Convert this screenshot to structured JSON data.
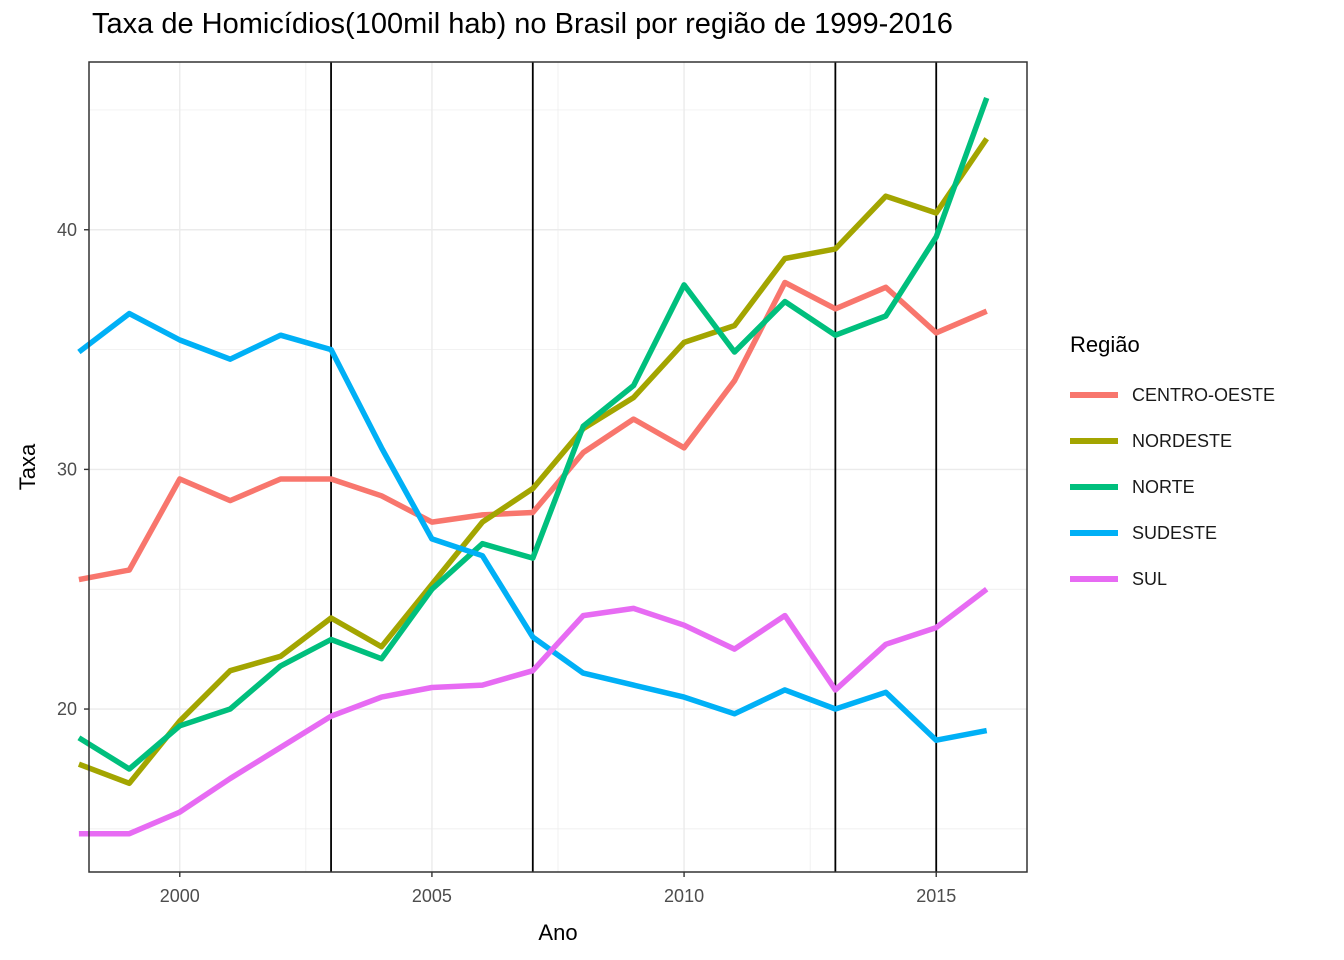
{
  "chart_data": {
    "type": "line",
    "title": "Taxa de Homicídios(100mil hab) no Brasil por região de 1999-2016",
    "xlabel": "Ano",
    "ylabel": "Taxa",
    "xlim": [
      1998.2,
      2016.8
    ],
    "ylim": [
      13.2,
      47.0
    ],
    "x_ticks": [
      2000,
      2005,
      2010,
      2015
    ],
    "y_ticks": [
      20,
      30,
      40
    ],
    "grid": true,
    "legend_position": "right",
    "legend_title": "Região",
    "vlines": [
      2003,
      2007,
      2013,
      2015
    ],
    "x": [
      1998,
      1999,
      2000,
      2001,
      2002,
      2003,
      2004,
      2005,
      2006,
      2007,
      2008,
      2009,
      2010,
      2011,
      2012,
      2013,
      2014,
      2015,
      2016
    ],
    "series": [
      {
        "name": "CENTRO-OESTE",
        "color": "#F8766D",
        "values": [
          25.4,
          25.8,
          29.6,
          28.7,
          29.6,
          29.6,
          28.9,
          27.8,
          28.1,
          28.2,
          30.7,
          32.1,
          30.9,
          33.7,
          37.8,
          36.7,
          37.6,
          35.7,
          36.6
        ]
      },
      {
        "name": "NORDESTE",
        "color": "#A3A500",
        "values": [
          17.7,
          16.9,
          19.5,
          21.6,
          22.2,
          23.8,
          22.6,
          25.2,
          27.8,
          29.2,
          31.7,
          33.0,
          35.3,
          36.0,
          38.8,
          39.2,
          41.4,
          40.7,
          43.8
        ]
      },
      {
        "name": "NORTE",
        "color": "#00BF7D",
        "values": [
          18.8,
          17.5,
          19.3,
          20.0,
          21.8,
          22.9,
          22.1,
          25.0,
          26.9,
          26.3,
          31.8,
          33.5,
          37.7,
          34.9,
          37.0,
          35.6,
          36.4,
          39.7,
          45.5
        ]
      },
      {
        "name": "SUDESTE",
        "color": "#00B0F6",
        "values": [
          34.9,
          36.5,
          35.4,
          34.6,
          35.6,
          35.0,
          30.9,
          27.1,
          26.4,
          23.0,
          21.5,
          21.0,
          20.5,
          19.8,
          20.8,
          20.0,
          20.7,
          18.7,
          19.1
        ]
      },
      {
        "name": "SUL",
        "color": "#E76BF3",
        "values": [
          14.8,
          14.8,
          15.7,
          17.1,
          18.4,
          19.7,
          20.5,
          20.9,
          21.0,
          21.6,
          23.9,
          24.2,
          23.5,
          22.5,
          23.9,
          20.8,
          22.7,
          23.4,
          25.0
        ]
      }
    ]
  }
}
